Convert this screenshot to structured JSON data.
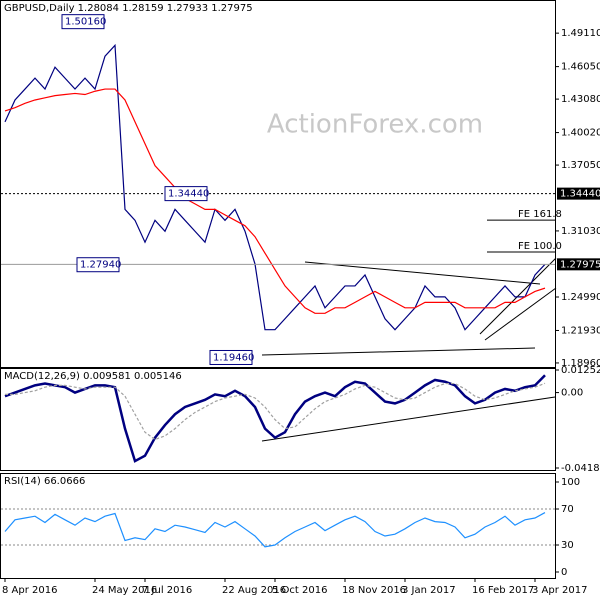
{
  "chart_data": [
    {
      "type": "line",
      "title": "GBPUSD,Daily  1.28084 1.28159 1.27933 1.27975",
      "watermark": "ActionForex.com",
      "series": [
        {
          "color": "#000080",
          "values": [
            1.41,
            1.43,
            1.44,
            1.45,
            1.44,
            1.46,
            1.45,
            1.44,
            1.45,
            1.44,
            1.47,
            1.48,
            1.33,
            1.32,
            1.3,
            1.32,
            1.31,
            1.33,
            1.32,
            1.31,
            1.3,
            1.33,
            1.32,
            1.33,
            1.31,
            1.28,
            1.22,
            1.22,
            1.23,
            1.24,
            1.25,
            1.26,
            1.24,
            1.25,
            1.26,
            1.26,
            1.27,
            1.25,
            1.23,
            1.22,
            1.23,
            1.24,
            1.26,
            1.25,
            1.25,
            1.24,
            1.22,
            1.23,
            1.24,
            1.25,
            1.26,
            1.25,
            1.25,
            1.27,
            1.27975
          ]
        },
        {
          "color": "#ff0000",
          "values": [
            1.42,
            1.423,
            1.427,
            1.43,
            1.432,
            1.434,
            1.435,
            1.436,
            1.435,
            1.438,
            1.44,
            1.44,
            1.43,
            1.41,
            1.39,
            1.37,
            1.36,
            1.35,
            1.34,
            1.335,
            1.33,
            1.33,
            1.325,
            1.32,
            1.315,
            1.305,
            1.29,
            1.275,
            1.26,
            1.25,
            1.24,
            1.235,
            1.235,
            1.24,
            1.24,
            1.245,
            1.25,
            1.255,
            1.25,
            1.245,
            1.24,
            1.24,
            1.245,
            1.245,
            1.245,
            1.245,
            1.24,
            1.24,
            1.24,
            1.24,
            1.245,
            1.245,
            1.25,
            1.255,
            1.258
          ]
        }
      ],
      "ylim": [
        1.1859,
        1.5214
      ],
      "yticks": [
        {
          "value": 1.4911,
          "label": "1.49110"
        },
        {
          "value": 1.4605,
          "label": "1.46050"
        },
        {
          "value": 1.4308,
          "label": "1.43080"
        },
        {
          "value": 1.4002,
          "label": "1.40020"
        },
        {
          "value": 1.3705,
          "label": "1.37050"
        },
        {
          "value": 1.3103,
          "label": "1.31030"
        },
        {
          "value": 1.2499,
          "label": "1.24990"
        },
        {
          "value": 1.2193,
          "label": "1.21930"
        },
        {
          "value": 1.1896,
          "label": "1.18960"
        }
      ],
      "price_labels": [
        {
          "value": 1.3444,
          "label": "1.34440"
        },
        {
          "value": 1.27975,
          "label": "1.27975"
        }
      ],
      "annotations": [
        {
          "value": 1.5016,
          "label": "1.50160"
        },
        {
          "value": 1.3444,
          "label": "1.34440"
        },
        {
          "value": 1.2794,
          "label": "1.27940"
        },
        {
          "value": 1.1946,
          "label": "1.19460"
        }
      ],
      "fe_levels": [
        {
          "value": 1.3202,
          "label": "FE 161.8"
        },
        {
          "value": 1.291,
          "label": "FE 100.0"
        }
      ]
    },
    {
      "type": "line",
      "title": "MACD(12,26,9) 0.009581 0.005146",
      "series": [
        {
          "color": "#000080",
          "values": [
            -0.002,
            0.0,
            0.002,
            0.004,
            0.005,
            0.004,
            0.003,
            0.0,
            0.002,
            0.004,
            0.004,
            0.003,
            -0.02,
            -0.038,
            -0.035,
            -0.025,
            -0.018,
            -0.012,
            -0.008,
            -0.006,
            -0.004,
            -0.001,
            -0.002,
            0.001,
            -0.002,
            -0.008,
            -0.02,
            -0.025,
            -0.022,
            -0.012,
            -0.005,
            -0.002,
            0.0,
            -0.002,
            0.003,
            0.006,
            0.005,
            0.0,
            -0.005,
            -0.006,
            -0.004,
            0.0,
            0.004,
            0.007,
            0.006,
            0.004,
            -0.002,
            -0.006,
            -0.004,
            0.0,
            0.002,
            0.001,
            0.003,
            0.004,
            0.009581
          ]
        },
        {
          "color": "#a0a0a0",
          "values": [
            -0.001,
            -0.001,
            0.0,
            0.001,
            0.003,
            0.004,
            0.004,
            0.003,
            0.002,
            0.003,
            0.003,
            0.003,
            -0.002,
            -0.012,
            -0.022,
            -0.026,
            -0.024,
            -0.02,
            -0.015,
            -0.011,
            -0.008,
            -0.005,
            -0.003,
            -0.002,
            -0.001,
            -0.003,
            -0.008,
            -0.015,
            -0.02,
            -0.019,
            -0.014,
            -0.009,
            -0.005,
            -0.003,
            -0.001,
            0.002,
            0.004,
            0.003,
            0.0,
            -0.003,
            -0.004,
            -0.003,
            0.0,
            0.003,
            0.005,
            0.005,
            0.002,
            -0.002,
            -0.004,
            -0.003,
            -0.001,
            0.001,
            0.002,
            0.003,
            0.005146
          ]
        }
      ],
      "ylim": [
        -0.041823,
        0.012522
      ],
      "yticks": [
        0.012522,
        {
          "value": 0,
          "label": "0.00"
        },
        -0.041823
      ]
    },
    {
      "type": "line",
      "title": "RSI(14) 66.0666",
      "categories": [
        "8 Apr 2016",
        null,
        null,
        null,
        null,
        null,
        null,
        null,
        null,
        "24 May 2016",
        null,
        null,
        null,
        null,
        "7 Jul 2016",
        null,
        null,
        null,
        null,
        null,
        null,
        null,
        "22 Aug 2016",
        null,
        null,
        null,
        null,
        "5 Oct 2016",
        null,
        null,
        null,
        null,
        null,
        null,
        "18 Nov 2016",
        null,
        null,
        null,
        null,
        null,
        "3 Jan 2017",
        null,
        null,
        null,
        null,
        null,
        null,
        "16 Feb 2017",
        null,
        null,
        null,
        null,
        null,
        "3 Apr 2017",
        null
      ],
      "series": [
        {
          "color": "#1e90ff",
          "values": [
            45,
            58,
            60,
            62,
            55,
            64,
            58,
            52,
            60,
            56,
            62,
            65,
            35,
            38,
            36,
            48,
            45,
            52,
            50,
            47,
            44,
            55,
            50,
            56,
            48,
            40,
            28,
            30,
            38,
            45,
            50,
            55,
            46,
            52,
            58,
            62,
            56,
            45,
            40,
            42,
            48,
            55,
            60,
            56,
            55,
            50,
            38,
            42,
            50,
            55,
            62,
            52,
            58,
            60,
            66.0666
          ]
        }
      ],
      "ylim": [
        0,
        100
      ],
      "yticks": [
        100,
        70,
        30,
        0
      ],
      "grid": true
    }
  ]
}
